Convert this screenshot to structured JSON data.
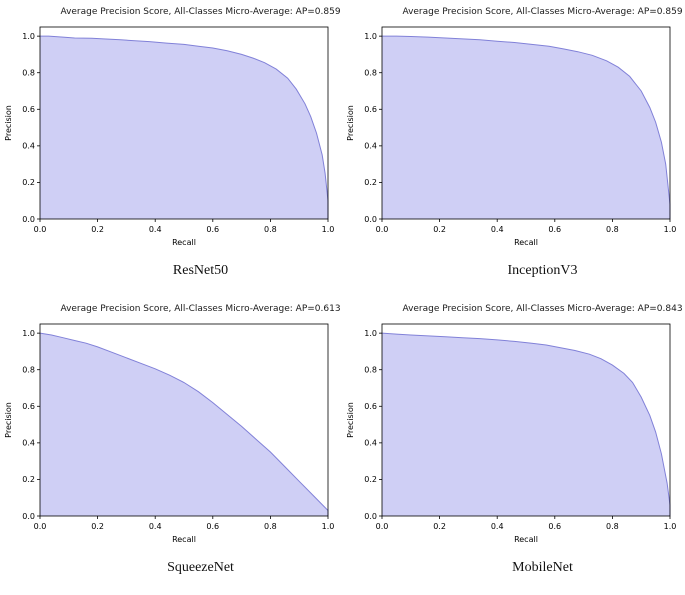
{
  "style": {
    "background": "#ffffff",
    "fill_color": "#cfcff5",
    "line_color": "#8181d8",
    "axis_color": "#000000"
  },
  "chart_data": [
    {
      "type": "area",
      "title": "Average Precision Score, All-Classes Micro-Average: AP=0.859",
      "caption": "ResNet50",
      "ap": 0.859,
      "xlabel": "Recall",
      "ylabel": "Precision",
      "xlim": [
        0,
        1
      ],
      "ylim": [
        0,
        1.05
      ],
      "xticks": [
        0.0,
        0.2,
        0.4,
        0.6,
        0.8,
        1.0
      ],
      "yticks": [
        0.0,
        0.2,
        0.4,
        0.6,
        0.8,
        1.0
      ],
      "grid": false,
      "legend": "none",
      "x": [
        0,
        0.03,
        0.08,
        0.12,
        0.18,
        0.22,
        0.28,
        0.33,
        0.38,
        0.44,
        0.5,
        0.55,
        0.6,
        0.65,
        0.7,
        0.74,
        0.78,
        0.82,
        0.86,
        0.89,
        0.92,
        0.94,
        0.96,
        0.98,
        0.99,
        1.0,
        1.0
      ],
      "y": [
        1.0,
        1.0,
        0.995,
        0.99,
        0.988,
        0.985,
        0.98,
        0.975,
        0.97,
        0.962,
        0.955,
        0.945,
        0.935,
        0.92,
        0.9,
        0.88,
        0.855,
        0.82,
        0.77,
        0.71,
        0.63,
        0.56,
        0.47,
        0.35,
        0.25,
        0.1,
        0.0
      ]
    },
    {
      "type": "area",
      "title": "Average Precision Score, All-Classes Micro-Average: AP=0.859",
      "caption": "InceptionV3",
      "ap": 0.859,
      "xlabel": "Recall",
      "ylabel": "Precision",
      "xlim": [
        0,
        1
      ],
      "ylim": [
        0,
        1.05
      ],
      "xticks": [
        0.0,
        0.2,
        0.4,
        0.6,
        0.8,
        1.0
      ],
      "yticks": [
        0.0,
        0.2,
        0.4,
        0.6,
        0.8,
        1.0
      ],
      "grid": false,
      "legend": "none",
      "x": [
        0,
        0.05,
        0.1,
        0.16,
        0.22,
        0.28,
        0.34,
        0.4,
        0.46,
        0.52,
        0.58,
        0.63,
        0.68,
        0.73,
        0.78,
        0.82,
        0.86,
        0.9,
        0.93,
        0.95,
        0.97,
        0.985,
        1.0,
        1.0
      ],
      "y": [
        1.0,
        1.0,
        0.998,
        0.995,
        0.99,
        0.985,
        0.98,
        0.972,
        0.965,
        0.955,
        0.945,
        0.93,
        0.915,
        0.895,
        0.865,
        0.83,
        0.78,
        0.7,
        0.61,
        0.53,
        0.42,
        0.3,
        0.08,
        0.0
      ]
    },
    {
      "type": "area",
      "title": "Average Precision Score, All-Classes Micro-Average: AP=0.613",
      "caption": "SqueezeNet",
      "ap": 0.613,
      "xlabel": "Recall",
      "ylabel": "Precision",
      "xlim": [
        0,
        1
      ],
      "ylim": [
        0,
        1.05
      ],
      "xticks": [
        0.0,
        0.2,
        0.4,
        0.6,
        0.8,
        1.0
      ],
      "yticks": [
        0.0,
        0.2,
        0.4,
        0.6,
        0.8,
        1.0
      ],
      "grid": false,
      "legend": "none",
      "x": [
        0,
        0.04,
        0.08,
        0.12,
        0.16,
        0.2,
        0.25,
        0.3,
        0.35,
        0.4,
        0.45,
        0.5,
        0.55,
        0.6,
        0.65,
        0.7,
        0.75,
        0.8,
        0.85,
        0.9,
        0.95,
        1.0,
        1.0
      ],
      "y": [
        1.0,
        0.99,
        0.975,
        0.96,
        0.945,
        0.925,
        0.895,
        0.865,
        0.835,
        0.805,
        0.77,
        0.73,
        0.68,
        0.62,
        0.555,
        0.49,
        0.42,
        0.35,
        0.27,
        0.19,
        0.11,
        0.03,
        0.0
      ]
    },
    {
      "type": "area",
      "title": "Average Precision Score, All-Classes Micro-Average: AP=0.843",
      "caption": "MobileNet",
      "ap": 0.843,
      "xlabel": "Recall",
      "ylabel": "Precision",
      "xlim": [
        0,
        1
      ],
      "ylim": [
        0,
        1.05
      ],
      "xticks": [
        0.0,
        0.2,
        0.4,
        0.6,
        0.8,
        1.0
      ],
      "yticks": [
        0.0,
        0.2,
        0.4,
        0.6,
        0.8,
        1.0
      ],
      "grid": false,
      "legend": "none",
      "x": [
        0,
        0.05,
        0.1,
        0.16,
        0.22,
        0.28,
        0.34,
        0.4,
        0.46,
        0.52,
        0.57,
        0.62,
        0.67,
        0.72,
        0.76,
        0.8,
        0.84,
        0.87,
        0.9,
        0.93,
        0.95,
        0.97,
        0.99,
        1.0,
        1.0
      ],
      "y": [
        1.0,
        0.995,
        0.99,
        0.985,
        0.98,
        0.975,
        0.97,
        0.963,
        0.955,
        0.945,
        0.935,
        0.92,
        0.905,
        0.885,
        0.86,
        0.825,
        0.78,
        0.73,
        0.65,
        0.55,
        0.46,
        0.34,
        0.18,
        0.06,
        0.0
      ]
    }
  ]
}
